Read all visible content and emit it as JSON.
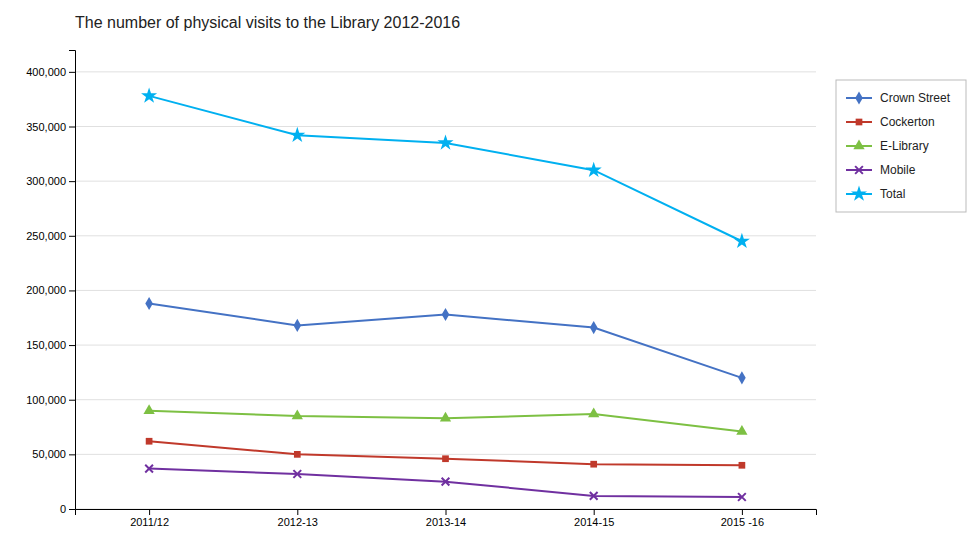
{
  "chart_data": {
    "type": "line",
    "title": "The number of physical visits to the Library 2012-2016",
    "categories": [
      "2011/12",
      "2012-13",
      "2013-14",
      "2014-15",
      "2015 -16"
    ],
    "series": [
      {
        "name": "Crown Street",
        "color": "#4472C4",
        "marker": "diamond",
        "values": [
          188000,
          168000,
          178000,
          166000,
          120000
        ]
      },
      {
        "name": "Cockerton",
        "color": "#C0392B",
        "marker": "square",
        "values": [
          62000,
          50000,
          46000,
          41000,
          40000
        ]
      },
      {
        "name": "E-Library",
        "color": "#7DC043",
        "marker": "triangle",
        "values": [
          90000,
          85000,
          83000,
          87000,
          71000
        ]
      },
      {
        "name": "Mobile",
        "color": "#7030A0",
        "marker": "x",
        "values": [
          37000,
          32000,
          25000,
          12000,
          11000
        ]
      },
      {
        "name": "Total",
        "color": "#00B0F0",
        "marker": "star",
        "values": [
          378000,
          342000,
          335000,
          310000,
          245000
        ]
      }
    ],
    "ylim": [
      0,
      420000
    ],
    "yticks": [
      0,
      {
        "value": 50000,
        "label": "50,000"
      },
      {
        "value": 100000,
        "label": "100,000"
      },
      {
        "value": 150000,
        "label": "150,000"
      },
      {
        "value": 200000,
        "label": "200,000"
      },
      {
        "value": 250000,
        "label": "250,000"
      },
      {
        "value": 300000,
        "label": "300,000"
      },
      {
        "value": 350000,
        "label": "350,000"
      },
      {
        "value": 400000,
        "label": "400,000"
      }
    ],
    "grid": true,
    "legend": "right"
  }
}
